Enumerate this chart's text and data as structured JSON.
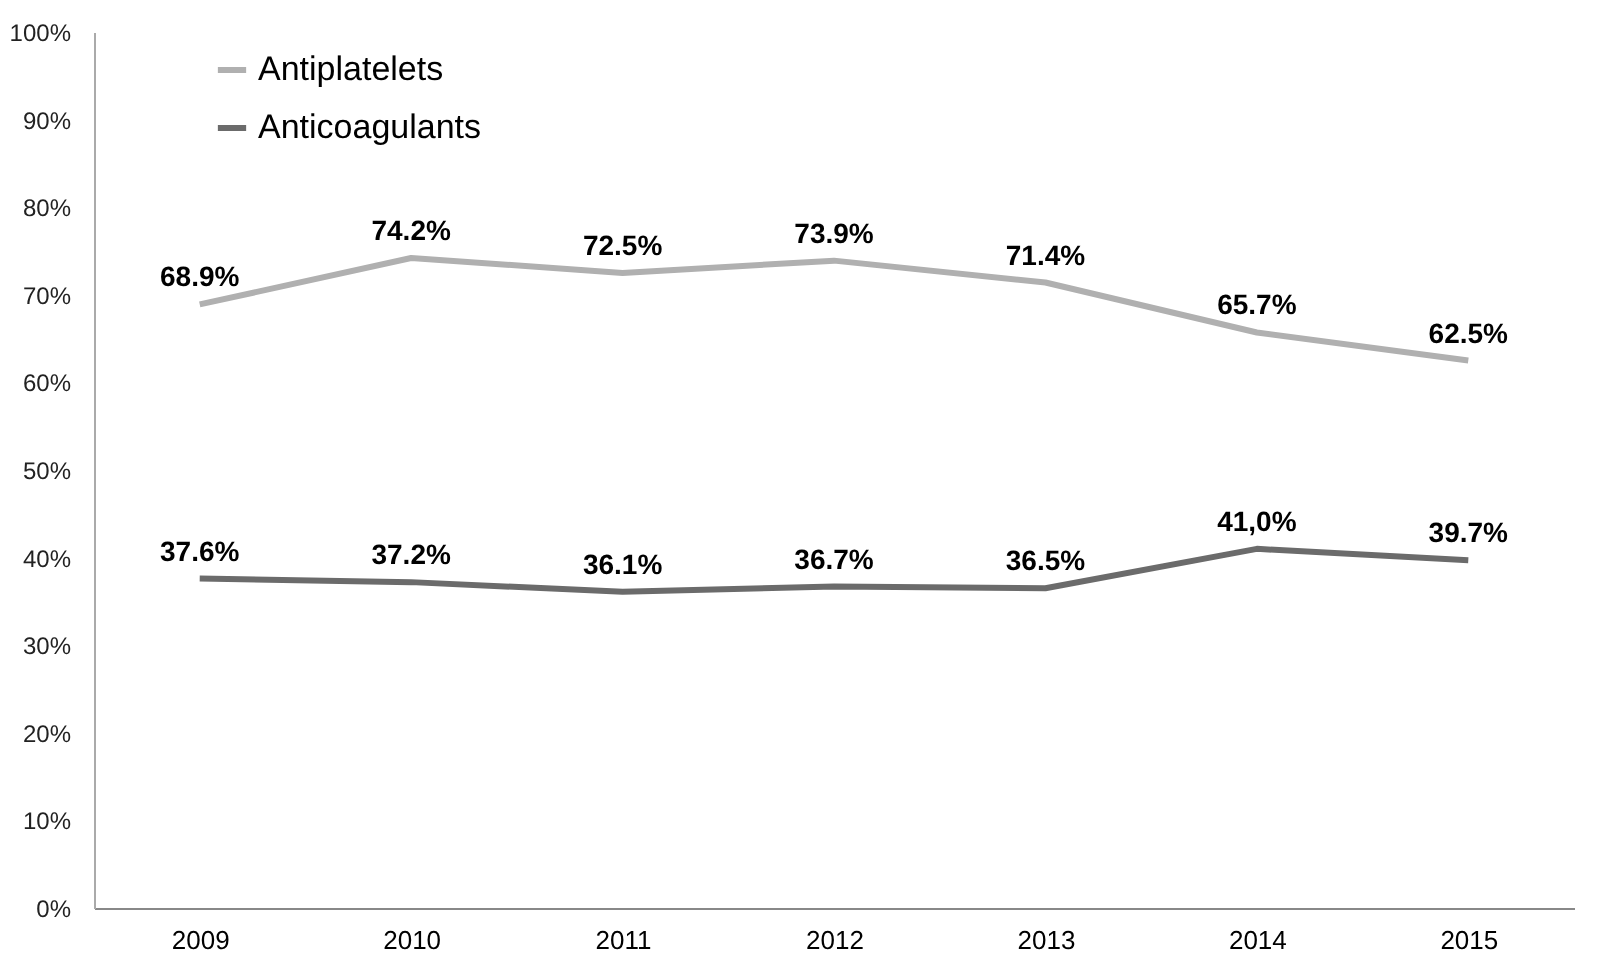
{
  "chart_data": {
    "type": "line",
    "categories": [
      "2009",
      "2010",
      "2011",
      "2012",
      "2013",
      "2014",
      "2015"
    ],
    "series": [
      {
        "name": "Antiplatelets",
        "color": "#b0b0b0",
        "values": [
          68.9,
          74.2,
          72.5,
          73.9,
          71.4,
          65.7,
          62.5
        ],
        "value_labels": [
          "68.9%",
          "74.2%",
          "72.5%",
          "73.9%",
          "71.4%",
          "65.7%",
          "62.5%"
        ]
      },
      {
        "name": "Anticoagulants",
        "color": "#6b6b6b",
        "values": [
          37.6,
          37.2,
          36.1,
          36.7,
          36.5,
          41.0,
          39.7
        ],
        "value_labels": [
          "37.6%",
          "37.2%",
          "36.1%",
          "36.7%",
          "36.5%",
          "41,0%",
          "39.7%"
        ]
      }
    ],
    "ylim": [
      0,
      100
    ],
    "yticks": [
      {
        "value": 0,
        "label": "0%"
      },
      {
        "value": 10,
        "label": "10%"
      },
      {
        "value": 20,
        "label": "20%"
      },
      {
        "value": 30,
        "label": "30%"
      },
      {
        "value": 40,
        "label": "40%"
      },
      {
        "value": 50,
        "label": "50%"
      },
      {
        "value": 60,
        "label": "60%"
      },
      {
        "value": 70,
        "label": "70%"
      },
      {
        "value": 80,
        "label": "80%"
      },
      {
        "value": 90,
        "label": "90%"
      },
      {
        "value": 100,
        "label": "100%"
      }
    ],
    "grid": false,
    "legend": "top left",
    "marker": "none",
    "line_style": "solid"
  }
}
